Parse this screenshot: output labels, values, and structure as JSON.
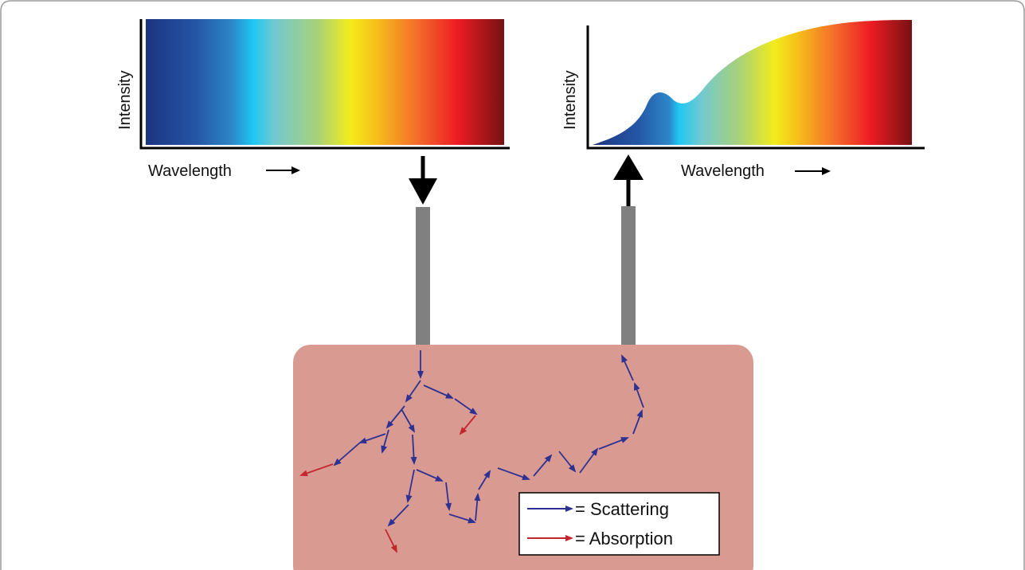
{
  "input_spectrum": {
    "y_axis_label": "Intensity",
    "x_axis_label": "Wavelength"
  },
  "output_spectrum": {
    "y_axis_label": "Intensity",
    "x_axis_label": "Wavelength"
  },
  "legend": {
    "scattering_label": "= Scattering",
    "absorption_label": "= Absorption"
  },
  "colors": {
    "tissue": "#d99a92",
    "fiber": "#808080",
    "scattering_arrow": "#2e3192",
    "absorption_arrow": "#c1272d",
    "frame_border": "#9a9a9a",
    "spectrum_stops": [
      "#1f3e8e",
      "#2455a4",
      "#1cc3f0",
      "#9bd1b8",
      "#f4ec1b",
      "#f7941d",
      "#ed1c24",
      "#7a1010"
    ]
  }
}
